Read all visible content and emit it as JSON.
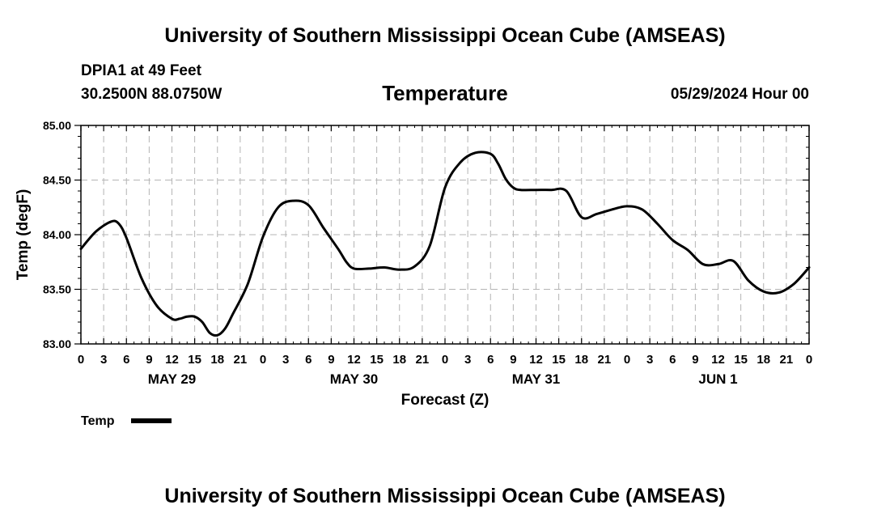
{
  "header": {
    "top_title": "University of Southern Mississippi Ocean Cube (AMSEAS)",
    "station": "DPIA1 at 49 Feet",
    "coords": "30.2500N  88.0750W",
    "chart_title": "Temperature",
    "date_hour": "05/29/2024 Hour 00",
    "bottom_title": "University of Southern Mississippi Ocean Cube (AMSEAS)"
  },
  "chart_data": {
    "type": "line",
    "title": "Temperature",
    "xlabel": "Forecast (Z)",
    "ylabel": "Temp (degF)",
    "ylim": [
      83.0,
      85.0
    ],
    "xlim": [
      0,
      96
    ],
    "y_ticks": [
      "83.00",
      "83.50",
      "84.00",
      "84.50",
      "85.00"
    ],
    "x_hours": [
      0,
      3,
      6,
      9,
      12,
      15,
      18,
      21,
      24,
      27,
      30,
      33,
      36,
      39,
      42,
      45,
      48,
      51,
      54,
      57,
      60,
      63,
      66,
      69,
      72,
      75,
      78,
      81,
      84,
      87,
      90,
      93,
      96
    ],
    "x_tick_labels": [
      "0",
      "3",
      "6",
      "9",
      "12",
      "15",
      "18",
      "21",
      "0",
      "3",
      "6",
      "9",
      "12",
      "15",
      "18",
      "21",
      "0",
      "3",
      "6",
      "9",
      "12",
      "15",
      "18",
      "21",
      "0",
      "3",
      "6",
      "9",
      "12",
      "15",
      "18",
      "21",
      "0"
    ],
    "day_labels": [
      {
        "hour": 12,
        "label": "MAY 29"
      },
      {
        "hour": 36,
        "label": "MAY 30"
      },
      {
        "hour": 60,
        "label": "MAY 31"
      },
      {
        "hour": 84,
        "label": "JUN 1"
      }
    ],
    "grid": true,
    "legend": "bottom-left",
    "series": [
      {
        "name": "Temp",
        "x": [
          0,
          2,
          4,
          5,
          6,
          8,
          10,
          12,
          13,
          14,
          15,
          16,
          17,
          18,
          19,
          20,
          22,
          24,
          26,
          28,
          30,
          32,
          34,
          35,
          36,
          38,
          40,
          42,
          44,
          46,
          48,
          50,
          52,
          54,
          55,
          56,
          57,
          58,
          60,
          62,
          64,
          66,
          68,
          70,
          72,
          74,
          76,
          78,
          80,
          82,
          84,
          86,
          88,
          90,
          92,
          94,
          96
        ],
        "values": [
          83.87,
          84.03,
          84.12,
          84.1,
          83.97,
          83.6,
          83.35,
          83.23,
          83.23,
          83.25,
          83.25,
          83.2,
          83.1,
          83.08,
          83.14,
          83.27,
          83.55,
          83.98,
          84.25,
          84.31,
          84.27,
          84.06,
          83.86,
          83.75,
          83.69,
          83.69,
          83.7,
          83.68,
          83.71,
          83.9,
          84.43,
          84.66,
          84.75,
          84.74,
          84.65,
          84.51,
          84.43,
          84.41,
          84.41,
          84.41,
          84.4,
          84.16,
          84.19,
          84.23,
          84.26,
          84.23,
          84.1,
          83.95,
          83.86,
          83.73,
          83.73,
          83.76,
          83.58,
          83.48,
          83.47,
          83.55,
          83.7
        ]
      }
    ]
  }
}
